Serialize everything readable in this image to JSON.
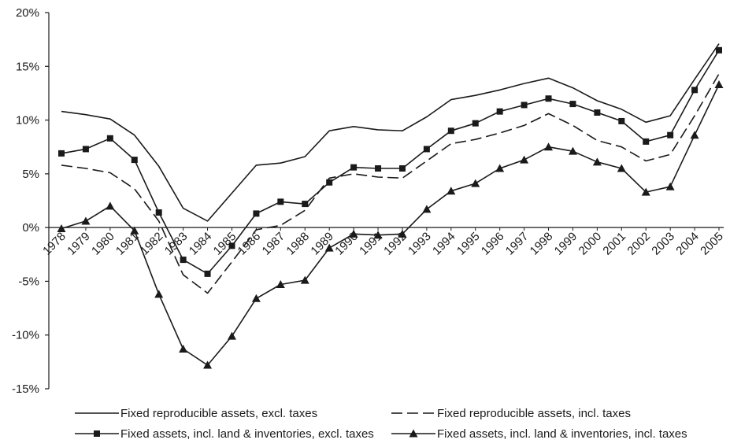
{
  "chart_data": {
    "type": "line",
    "title": "",
    "xlabel": "",
    "ylabel": "",
    "ylim": [
      -15,
      20
    ],
    "y_ticks": [
      -15,
      -10,
      -5,
      0,
      5,
      10,
      15,
      20
    ],
    "y_tick_suffix": "%",
    "grid": false,
    "legend_position": "bottom",
    "categories": [
      "1978",
      "1979",
      "1980",
      "1981",
      "1982",
      "1983",
      "1984",
      "1985",
      "1986",
      "1987",
      "1988",
      "1989",
      "1990",
      "1991",
      "1992",
      "1993",
      "1994",
      "1995",
      "1996",
      "1997",
      "1998",
      "1999",
      "2000",
      "2001",
      "2002",
      "2003",
      "2004",
      "2005"
    ],
    "series": [
      {
        "name": "Fixed reproducible assets, excl. taxes",
        "line_style": "solid",
        "marker": "none",
        "values": [
          10.8,
          10.5,
          10.1,
          8.6,
          5.7,
          1.8,
          0.6,
          3.2,
          5.8,
          6.0,
          6.6,
          9.0,
          9.4,
          9.1,
          9.0,
          10.3,
          11.9,
          12.3,
          12.8,
          13.4,
          13.9,
          13.0,
          11.8,
          11.0,
          9.8,
          10.4,
          13.8,
          17.1
        ]
      },
      {
        "name": "Fixed reproducible assets, incl. taxes",
        "line_style": "dashed",
        "marker": "none",
        "values": [
          5.8,
          5.5,
          5.1,
          3.6,
          0.6,
          -4.4,
          -6.1,
          -3.2,
          -0.2,
          0.2,
          1.6,
          4.6,
          5.0,
          4.7,
          4.6,
          6.2,
          7.8,
          8.2,
          8.8,
          9.5,
          10.6,
          9.5,
          8.1,
          7.5,
          6.2,
          6.8,
          10.4,
          14.3
        ]
      },
      {
        "name": "Fixed assets, incl. land & inventories, excl. taxes",
        "line_style": "solid",
        "marker": "square",
        "values": [
          6.9,
          7.3,
          8.3,
          6.3,
          1.4,
          -3.0,
          -4.3,
          -1.7,
          1.3,
          2.4,
          2.2,
          4.2,
          5.6,
          5.5,
          5.5,
          7.3,
          9.0,
          9.7,
          10.8,
          11.4,
          12.0,
          11.5,
          10.7,
          9.9,
          8.0,
          8.6,
          12.8,
          16.5
        ]
      },
      {
        "name": "Fixed assets, incl. land & inventories, incl. taxes",
        "line_style": "solid",
        "marker": "triangle",
        "values": [
          -0.1,
          0.6,
          2.0,
          -0.3,
          -6.2,
          -11.3,
          -12.8,
          -10.1,
          -6.6,
          -5.3,
          -4.9,
          -1.9,
          -0.6,
          -0.7,
          -0.6,
          1.7,
          3.4,
          4.1,
          5.5,
          6.3,
          7.5,
          7.1,
          6.1,
          5.5,
          3.3,
          3.8,
          8.6,
          13.3
        ]
      }
    ]
  }
}
